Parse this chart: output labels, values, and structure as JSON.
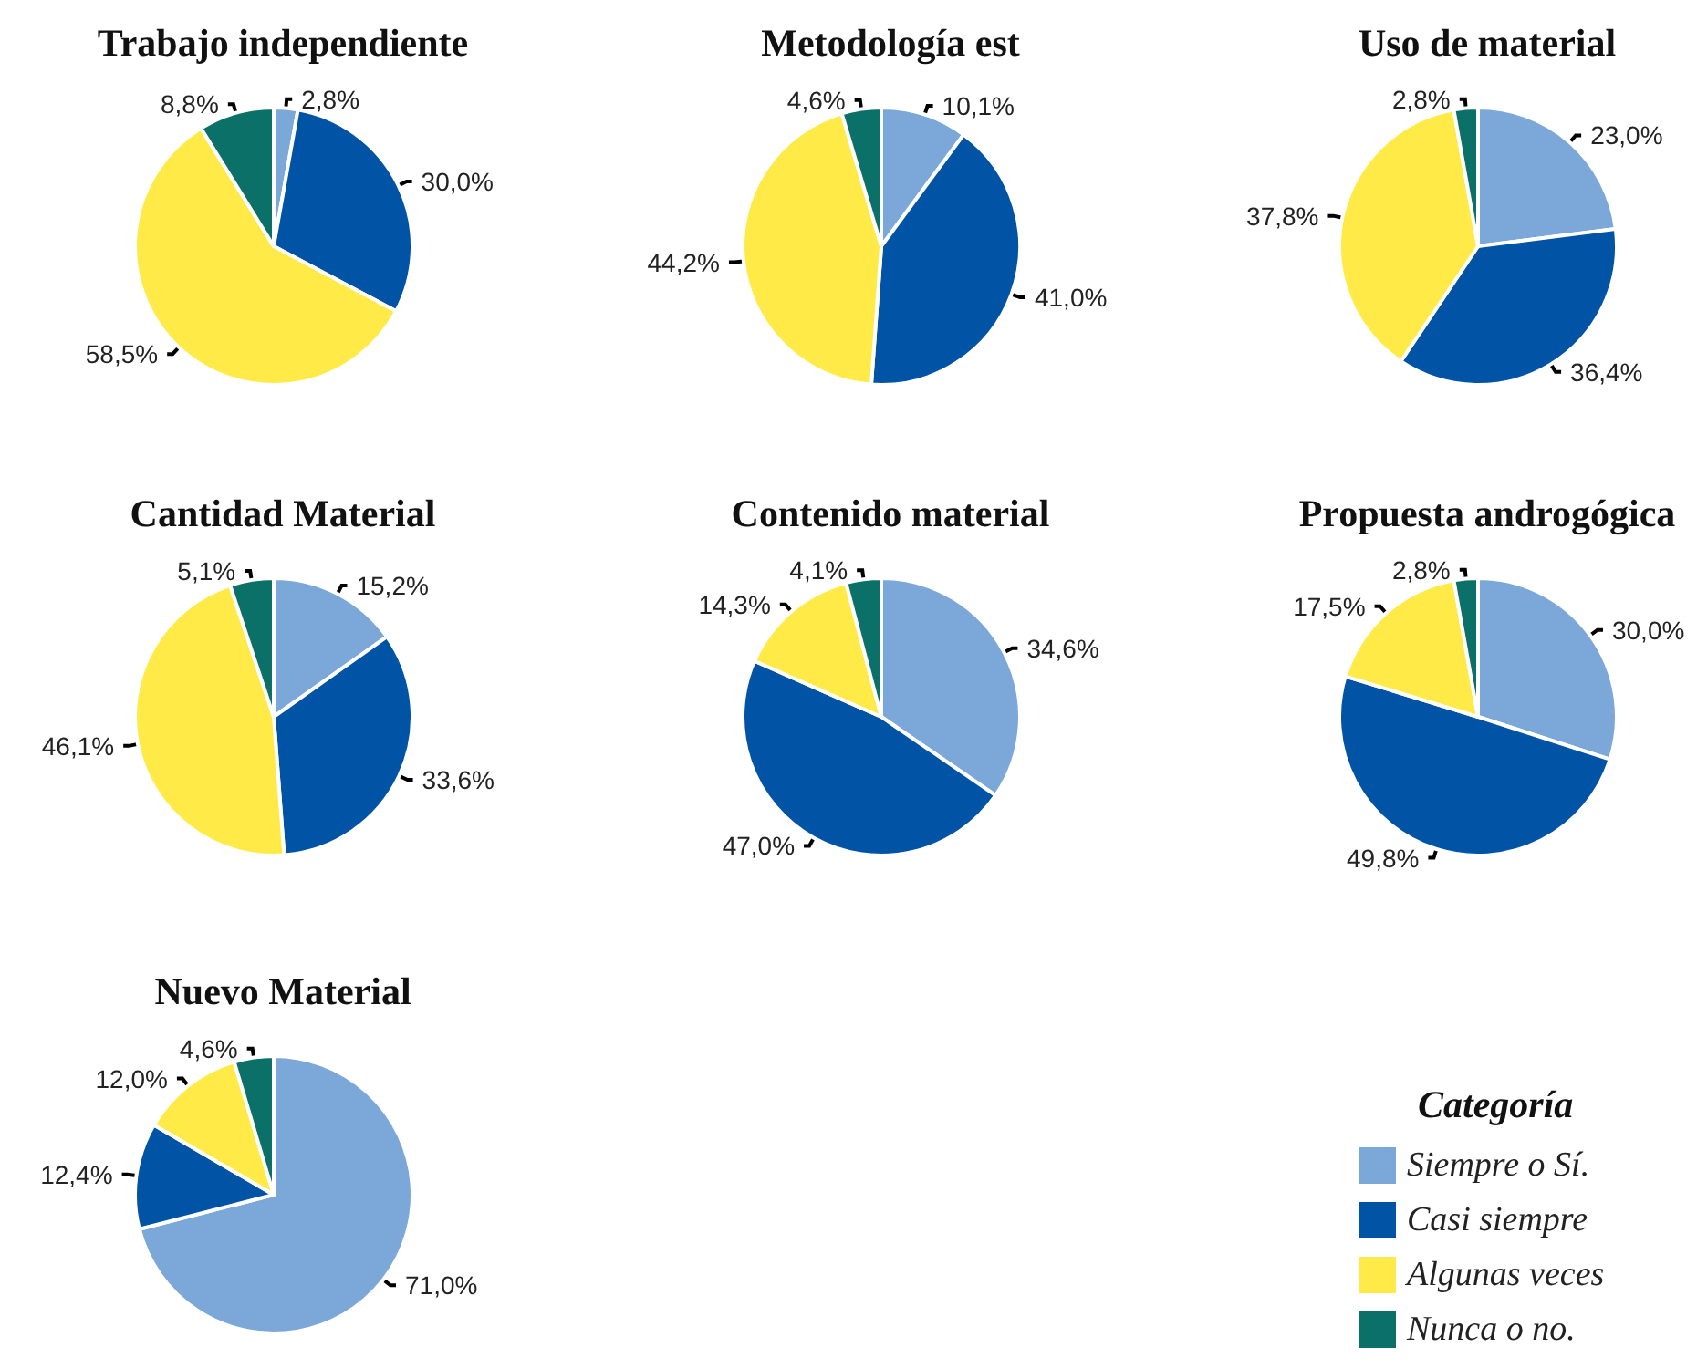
{
  "chart_data": [
    {
      "type": "pie",
      "title": "Trabajo independiente",
      "categories": [
        null,
        null,
        null,
        null
      ],
      "values": [
        2.8,
        30.0,
        58.5,
        8.8
      ],
      "colors": [
        "#7ba7d9",
        "#0153a5",
        "#ffea47",
        "#0b7168"
      ],
      "value_labels": [
        "2,8%",
        "30,0%",
        "58,5%",
        "8,8%"
      ]
    },
    {
      "type": "pie",
      "title": "Metodología est",
      "categories": [
        null,
        null,
        null,
        null
      ],
      "values": [
        10.1,
        41.0,
        44.2,
        4.6
      ],
      "colors": [
        "#7ba7d9",
        "#0153a5",
        "#ffea47",
        "#0b7168"
      ],
      "value_labels": [
        "10,1%",
        "41,0%",
        "44,2%",
        "4,6%"
      ]
    },
    {
      "type": "pie",
      "title": "Uso de material",
      "categories": [
        null,
        null,
        null,
        null
      ],
      "values": [
        23.0,
        36.4,
        37.8,
        2.8
      ],
      "colors": [
        "#7ba7d9",
        "#0153a5",
        "#ffea47",
        "#0b7168"
      ],
      "value_labels": [
        "23,0%",
        "36,4%",
        "37,8%",
        "2,8%"
      ]
    },
    {
      "type": "pie",
      "title": "Cantidad Material",
      "categories": [
        null,
        null,
        null,
        null
      ],
      "values": [
        15.2,
        33.6,
        46.1,
        5.1
      ],
      "colors": [
        "#7ba7d9",
        "#0153a5",
        "#ffea47",
        "#0b7168"
      ],
      "value_labels": [
        "15,2%",
        "33,6%",
        "46,1%",
        "5,1%"
      ]
    },
    {
      "type": "pie",
      "title": "Contenido material",
      "categories": [
        null,
        null,
        null,
        null
      ],
      "values": [
        34.6,
        47.0,
        14.3,
        4.1
      ],
      "colors": [
        "#7ba7d9",
        "#0153a5",
        "#ffea47",
        "#0b7168"
      ],
      "value_labels": [
        "34,6%",
        "47,0%",
        "14,3%",
        "4,1%"
      ]
    },
    {
      "type": "pie",
      "title": "Propuesta androgógica",
      "categories": [
        null,
        null,
        null,
        null
      ],
      "values": [
        30.0,
        49.8,
        17.5,
        2.8
      ],
      "colors": [
        "#7ba7d9",
        "#0153a5",
        "#ffea47",
        "#0b7168"
      ],
      "value_labels": [
        "30,0%",
        "49,8%",
        "17,5%",
        "2,8%"
      ]
    },
    {
      "type": "pie",
      "title": "Nuevo Material",
      "categories": [
        "Siempre o Sí.",
        "Casi siempre",
        "Algunas veces",
        "Nunca o no."
      ],
      "values": [
        71.0,
        12.4,
        12.0,
        4.6
      ],
      "colors": [
        "#7ba7d9",
        "#0153a5",
        "#ffea47",
        "#0b7168"
      ],
      "value_labels": [
        "71,0%",
        "12,4%",
        "12,0%",
        "4,6%"
      ],
      "legend": "right",
      "legend_title": "Categoría"
    }
  ]
}
